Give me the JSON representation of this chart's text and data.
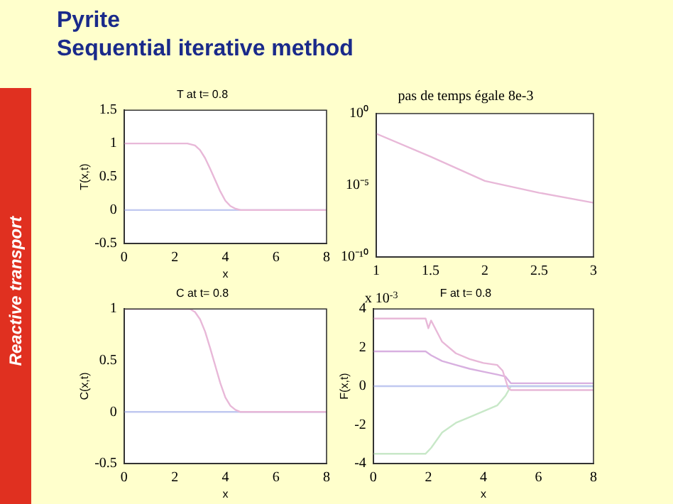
{
  "chart_data": [
    {
      "type": "line",
      "title": "T at t= 0.8",
      "xlabel": "x",
      "ylabel": "T(x,t)",
      "xlim": [
        0,
        8
      ],
      "xticks": [
        0,
        2,
        4,
        6,
        8
      ],
      "ylim": [
        -0.5,
        1.5
      ],
      "yticks": [
        -0.5,
        0,
        0.5,
        1,
        1.5
      ],
      "annotations": [
        "Pyrite",
        "Sequential iterative method",
        "Reactive transport"
      ],
      "series": [
        {
          "color": "#e8b8d8",
          "x": [
            0,
            2.5,
            2.8,
            3,
            3.2,
            3.4,
            3.6,
            3.8,
            4,
            4.2,
            4.4,
            4.6,
            8
          ],
          "values": [
            1,
            1,
            0.97,
            0.9,
            0.78,
            0.62,
            0.45,
            0.28,
            0.14,
            0.06,
            0.02,
            0,
            0
          ]
        },
        {
          "color": "#c0c8f0",
          "x": [
            0,
            8
          ],
          "values": [
            0,
            0
          ]
        }
      ]
    },
    {
      "type": "line",
      "title": "pas de temps égale 8e-3",
      "log": "y",
      "xlim": [
        1,
        3
      ],
      "xticks": [
        1,
        1.5,
        2,
        2.5,
        3
      ],
      "ylim": [
        1e-10,
        1
      ],
      "yticks": [
        {
          "value": 1e-10,
          "label": "10⁻¹⁰"
        },
        {
          "value": 1e-05,
          "label": "10⁻⁵"
        },
        {
          "value": 1,
          "label": "10⁰"
        }
      ],
      "series": [
        {
          "color": "#e8b8d8",
          "x": [
            1,
            1.5,
            2,
            2.5,
            3
          ],
          "values": [
            0.04,
            0.001,
            2e-05,
            3e-06,
            6e-07
          ]
        }
      ]
    },
    {
      "type": "line",
      "title": "C at t= 0.8",
      "xlabel": "x",
      "ylabel": "C(x,t)",
      "xlim": [
        0,
        8
      ],
      "xticks": [
        0,
        2,
        4,
        6,
        8
      ],
      "ylim": [
        -0.5,
        1
      ],
      "yticks": [
        -0.5,
        0,
        0.5,
        1
      ],
      "series": [
        {
          "color": "#e8b8d8",
          "x": [
            0,
            2.6,
            2.8,
            3,
            3.2,
            3.4,
            3.6,
            3.8,
            4,
            4.2,
            4.4,
            4.6,
            8
          ],
          "values": [
            1,
            1,
            0.97,
            0.9,
            0.78,
            0.62,
            0.45,
            0.28,
            0.14,
            0.06,
            0.02,
            0,
            0
          ]
        },
        {
          "color": "#c0c8f0",
          "x": [
            0,
            8
          ],
          "values": [
            0,
            0
          ]
        }
      ]
    },
    {
      "type": "line",
      "title": "F at t= 0.8",
      "xlabel": "x",
      "ylabel": "F(x,t)",
      "xlim": [
        0,
        8
      ],
      "xticks": [
        0,
        2,
        4,
        6,
        8
      ],
      "ylim": [
        -4,
        4
      ],
      "yticks": [
        -4,
        -2,
        0,
        2,
        4
      ],
      "annotations": [
        "x 10$^{-3}$"
      ],
      "series": [
        {
          "color": "#e8b8d8",
          "x": [
            0,
            1.9,
            2.0,
            2.1,
            2.5,
            3,
            3.5,
            4,
            4.5,
            4.7,
            4.9,
            5,
            8
          ],
          "values": [
            3.5,
            3.5,
            3.0,
            3.4,
            2.3,
            1.7,
            1.4,
            1.2,
            1.1,
            0.8,
            -0.1,
            -0.2,
            -0.2
          ]
        },
        {
          "color": "#d8b0e0",
          "x": [
            0,
            1.9,
            2.1,
            2.5,
            3,
            3.5,
            4,
            4.5,
            4.8,
            5,
            8
          ],
          "values": [
            1.8,
            1.8,
            1.6,
            1.3,
            1.1,
            0.9,
            0.75,
            0.6,
            0.5,
            0.15,
            0.15
          ]
        },
        {
          "color": "#c0c8f0",
          "x": [
            0,
            8
          ],
          "values": [
            0,
            0
          ]
        },
        {
          "color": "#c8e8c8",
          "x": [
            0,
            1.9,
            2.1,
            2.5,
            3,
            3.5,
            4,
            4.5,
            4.8,
            5,
            8
          ],
          "values": [
            -3.5,
            -3.5,
            -3.2,
            -2.4,
            -1.9,
            -1.6,
            -1.3,
            -1.0,
            -0.5,
            0,
            0
          ]
        }
      ]
    }
  ]
}
